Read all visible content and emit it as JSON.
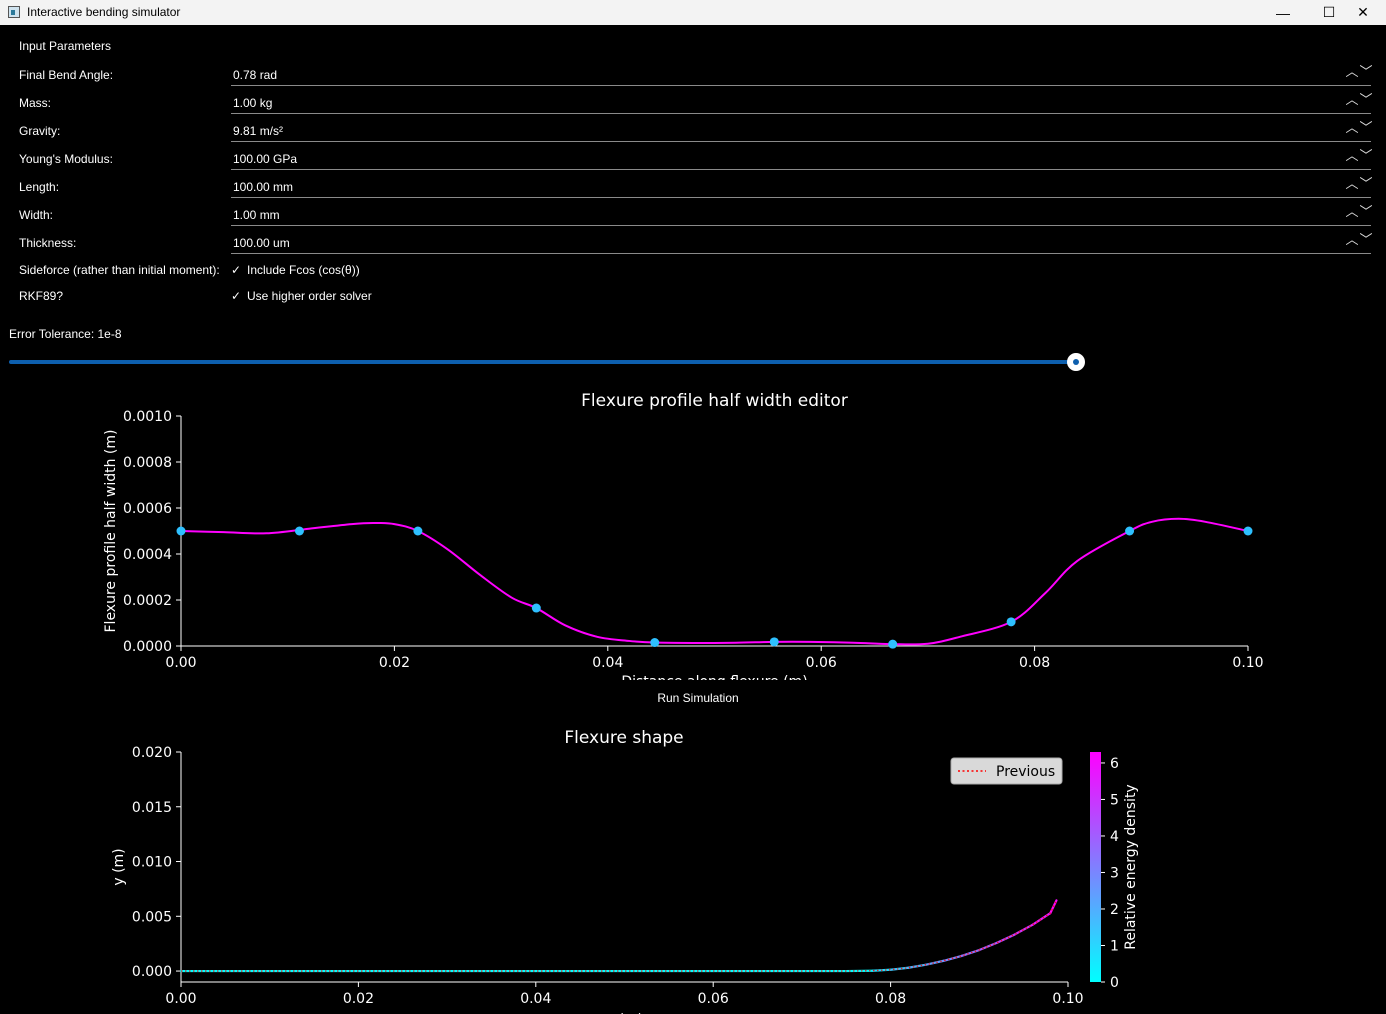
{
  "window": {
    "title": "Interactive bending simulator",
    "minimize_glyph": "—",
    "maximize_glyph": "☐",
    "close_glyph": "✕"
  },
  "params": {
    "title": "Input Parameters",
    "spin": [
      {
        "label": "Final Bend Angle:",
        "value": "0.78 rad"
      },
      {
        "label": "Mass:",
        "value": "1.00 kg"
      },
      {
        "label": "Gravity:",
        "value": "9.81 m/s²"
      },
      {
        "label": "Young's Modulus:",
        "value": "100.00 GPa"
      },
      {
        "label": "Length:",
        "value": "100.00 mm"
      },
      {
        "label": "Width:",
        "value": "1.00 mm"
      },
      {
        "label": "Thickness:",
        "value": "100.00 um"
      }
    ],
    "checks": [
      {
        "label": "Sideforce (rather than initial moment):",
        "text": "Include Fcos (cos(θ))",
        "mark": "✓"
      },
      {
        "label": "RKF89?",
        "text": "Use higher order solver",
        "mark": "✓"
      }
    ],
    "spin_up": "︿",
    "spin_down": "﹀"
  },
  "tolerance": {
    "label": "Error Tolerance: 1e-8",
    "fraction": 1.0
  },
  "run_button": "Run Simulation",
  "chart_data": [
    {
      "type": "line",
      "title": "Flexure profile half width editor",
      "xlabel": "Distance along flexure (m)",
      "ylabel": "Flexure profile half width (m)",
      "xlim": [
        0,
        0.1
      ],
      "ylim": [
        0,
        0.001
      ],
      "xticks": [
        "0.00",
        "0.02",
        "0.04",
        "0.06",
        "0.08",
        "0.10"
      ],
      "yticks": [
        "0.0000",
        "0.0002",
        "0.0004",
        "0.0006",
        "0.0008",
        "0.0010"
      ],
      "control_points": {
        "x": [
          0.0,
          0.0111,
          0.0222,
          0.0333,
          0.0444,
          0.0556,
          0.0667,
          0.0778,
          0.0889,
          0.1
        ],
        "y": [
          0.0005,
          0.0005,
          0.0005,
          0.000165,
          1.5e-05,
          1.8e-05,
          8e-06,
          0.000105,
          0.0005,
          0.0005
        ]
      },
      "curve": {
        "x": [
          0.0,
          0.004,
          0.008,
          0.012,
          0.016,
          0.018,
          0.02,
          0.0222,
          0.025,
          0.028,
          0.031,
          0.0333,
          0.036,
          0.039,
          0.042,
          0.0444,
          0.048,
          0.052,
          0.0556,
          0.059,
          0.063,
          0.0667,
          0.07,
          0.073,
          0.0778,
          0.081,
          0.084,
          0.0889,
          0.091,
          0.0935,
          0.096,
          0.1
        ],
        "y": [
          0.0005,
          0.000495,
          0.00049,
          0.00051,
          0.00053,
          0.000535,
          0.00053,
          0.0005,
          0.00042,
          0.00031,
          0.00021,
          0.000165,
          9e-05,
          4e-05,
          2.2e-05,
          1.5e-05,
          1.3e-05,
          1.4e-05,
          1.8e-05,
          1.8e-05,
          1.4e-05,
          8e-06,
          1e-05,
          4e-05,
          0.000105,
          0.00023,
          0.00037,
          0.0005,
          0.00054,
          0.000553,
          0.00054,
          0.0005
        ]
      },
      "curve_color": "#ff00ff",
      "point_color": "#2ec0ff",
      "grid": false
    },
    {
      "type": "line",
      "title": "Flexure shape",
      "xlabel": "x (m)",
      "ylabel": "y (m)",
      "xlim": [
        0,
        0.1
      ],
      "ylim": [
        -0.001,
        0.02
      ],
      "xticks": [
        "0.00",
        "0.02",
        "0.04",
        "0.06",
        "0.08",
        "0.10"
      ],
      "yticks": [
        "0.000",
        "0.005",
        "0.010",
        "0.015",
        "0.020"
      ],
      "series": [
        {
          "x": [
            0.0,
            0.01,
            0.02,
            0.03,
            0.04,
            0.05,
            0.06,
            0.07,
            0.075,
            0.078,
            0.08,
            0.082,
            0.084,
            0.086,
            0.088,
            0.09,
            0.092,
            0.094,
            0.096,
            0.098,
            0.0987
          ],
          "y": [
            0.0,
            0.0,
            0.0,
            0.0,
            0.0,
            0.0,
            0.0,
            0.0,
            0.0,
            3e-05,
            0.00012,
            0.0003,
            0.00058,
            0.00094,
            0.00138,
            0.00192,
            0.00258,
            0.00334,
            0.00422,
            0.00528,
            0.00645
          ],
          "color_by_energy": true
        },
        {
          "name": "Previous",
          "style": "dotted",
          "color": "#ff0000",
          "x": [
            0.0,
            0.01,
            0.02,
            0.03,
            0.04,
            0.05,
            0.06,
            0.07,
            0.075,
            0.078,
            0.08,
            0.082,
            0.084,
            0.086,
            0.088,
            0.09,
            0.092,
            0.094,
            0.096,
            0.098,
            0.0987
          ],
          "y": [
            0.0,
            0.0,
            0.0,
            0.0,
            0.0,
            0.0,
            0.0,
            0.0,
            0.0,
            3e-05,
            0.00012,
            0.0003,
            0.00058,
            0.00094,
            0.00138,
            0.00192,
            0.00258,
            0.00334,
            0.00422,
            0.00528,
            0.00645
          ]
        }
      ],
      "legend": "top-right",
      "colorbar": {
        "label": "Relative energy density",
        "ticks": [
          "0",
          "1",
          "2",
          "3",
          "4",
          "5",
          "6"
        ],
        "range": [
          0,
          6.3
        ],
        "colors": [
          "#00ffff",
          "#ff00ff"
        ]
      },
      "grid": false
    }
  ]
}
